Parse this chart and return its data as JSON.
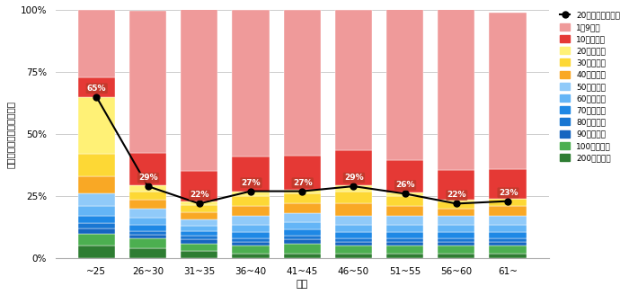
{
  "categories": [
    "~25",
    "26~30",
    "31~35",
    "36~40",
    "41~45",
    "46~50",
    "51~55",
    "56~60",
    "61~"
  ],
  "line_values": [
    65,
    29,
    22,
    27,
    27,
    29,
    26,
    22,
    23
  ],
  "legend_labels": [
    "20発話以上の割合",
    "1～9発話",
    "10発話以上",
    "20発話以上",
    "30発話以上",
    "40発話以上",
    "50発話以上",
    "60発話以上",
    "70発話以上",
    "80発話以上",
    "90発話以上",
    "100発話以上",
    "200発話以上"
  ],
  "colors": {
    "200発話以上": "#2e7d32",
    "100発話以上": "#4caf50",
    "90発話以上": "#1565c0",
    "80発話以上": "#1976d2",
    "70発話以上": "#1e88e5",
    "60発話以上": "#64b5f6",
    "50発話以上": "#90caf9",
    "40発話以上": "#f9a825",
    "30発話以上": "#fdd835",
    "20発話以上": "#fff176",
    "10発話以上": "#e53935",
    "1～9発話": "#ef9a9a"
  },
  "stack_pcts": {
    "200発話以上": [
      5.0,
      4.0,
      3.0,
      2.0,
      2.0,
      2.0,
      2.0,
      2.0,
      2.0
    ],
    "100発話以上": [
      5.0,
      4.0,
      3.0,
      3.0,
      4.0,
      3.0,
      3.0,
      3.0,
      3.0
    ],
    "90発話以上": [
      2.0,
      1.5,
      1.5,
      1.5,
      1.5,
      1.5,
      1.5,
      1.5,
      1.5
    ],
    "80発話以上": [
      2.0,
      1.5,
      1.5,
      1.5,
      1.5,
      1.5,
      1.5,
      1.5,
      1.5
    ],
    "70発話以上": [
      3.0,
      2.5,
      2.0,
      2.5,
      2.5,
      2.5,
      2.5,
      2.5,
      2.5
    ],
    "60発話以上": [
      4.0,
      3.0,
      2.0,
      3.0,
      3.0,
      3.0,
      3.0,
      3.0,
      3.0
    ],
    "50発話以上": [
      5.0,
      3.5,
      2.5,
      3.5,
      3.5,
      3.5,
      3.5,
      3.5,
      3.5
    ],
    "40発話以上": [
      7.0,
      3.5,
      3.0,
      4.0,
      4.0,
      5.0,
      4.0,
      3.0,
      4.0
    ],
    "30発話以上": [
      9.0,
      3.5,
      3.0,
      4.0,
      4.0,
      5.0,
      4.0,
      3.0,
      3.0
    ],
    "20発話以上": [
      23.0,
      2.5,
      1.5,
      2.0,
      1.5,
      2.5,
      1.5,
      0.5,
      0.0
    ],
    "10発話以上": [
      8.0,
      13.0,
      12.0,
      14.0,
      14.0,
      14.0,
      13.0,
      12.0,
      12.0
    ],
    "1～9発話": [
      27.0,
      57.0,
      66.0,
      59.0,
      58.5,
      56.5,
      61.5,
      65.5,
      63.0
    ]
  },
  "ylabel": "月間の発話数別の人の割合",
  "xlabel": "年代",
  "background_color": "#ffffff",
  "grid_color": "#cccccc"
}
